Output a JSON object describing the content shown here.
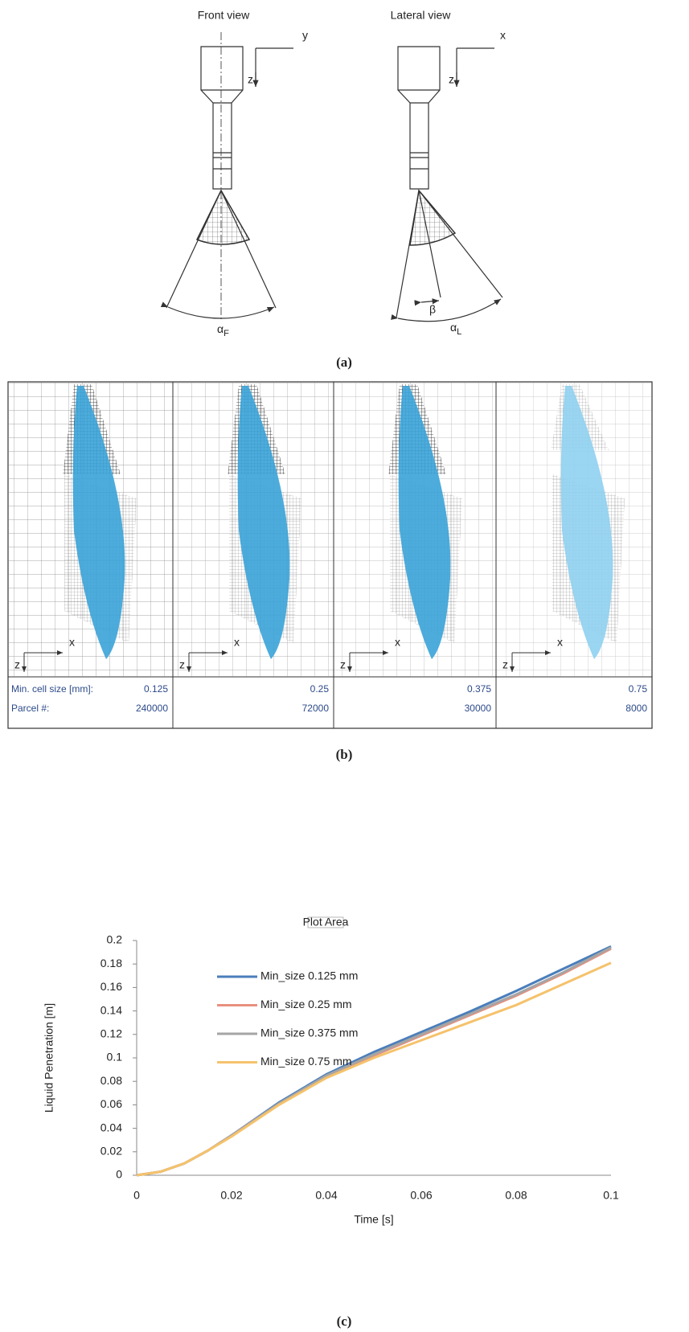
{
  "panel_a": {
    "front_title": "Front view",
    "lateral_title": "Lateral view",
    "front_axes": {
      "h": "y",
      "v": "z"
    },
    "lateral_axes": {
      "h": "x",
      "v": "z"
    },
    "alpha_f": {
      "symbol": "α",
      "subscript": "F"
    },
    "beta": "β",
    "alpha_l": {
      "symbol": "α",
      "subscript": "L"
    },
    "caption": "(a)"
  },
  "panel_b": {
    "axis_labels": {
      "x": "x",
      "z": "z"
    },
    "table": {
      "row_labels": [
        "Min. cell size [mm]:",
        "Parcel #:"
      ],
      "columns": [
        [
          "0.125",
          "240000"
        ],
        [
          "0.25",
          "72000"
        ],
        [
          "0.375",
          "30000"
        ],
        [
          "0.75",
          "8000"
        ]
      ]
    },
    "caption": "(b)"
  },
  "chart_data": {
    "type": "line",
    "x_label": "Time [s]",
    "y_label": "Liquid Penetration [m]",
    "annotation": "Plot Area",
    "x": [
      0,
      0.005,
      0.01,
      0.015,
      0.02,
      0.03,
      0.04,
      0.05,
      0.06,
      0.07,
      0.08,
      0.09,
      0.1
    ],
    "series": [
      {
        "name": "Min_size 0.125 mm",
        "color": "#4a7ebb",
        "values": [
          0,
          0.003,
          0.01,
          0.021,
          0.034,
          0.062,
          0.086,
          0.105,
          0.122,
          0.139,
          0.157,
          0.176,
          0.195
        ]
      },
      {
        "name": "Min_size 0.25 mm",
        "color": "#e8907e",
        "values": [
          0,
          0.003,
          0.01,
          0.021,
          0.034,
          0.061,
          0.084,
          0.102,
          0.119,
          0.136,
          0.153,
          0.172,
          0.193
        ]
      },
      {
        "name": "Min_size 0.375 mm",
        "color": "#a5a5a5",
        "values": [
          0,
          0.003,
          0.01,
          0.021,
          0.034,
          0.061,
          0.085,
          0.103,
          0.12,
          0.137,
          0.154,
          0.173,
          0.194
        ]
      },
      {
        "name": "Min_size 0.75 mm",
        "color": "#f5c26b",
        "values": [
          0,
          0.003,
          0.01,
          0.021,
          0.033,
          0.06,
          0.083,
          0.1,
          0.115,
          0.13,
          0.145,
          0.163,
          0.181
        ]
      }
    ],
    "xlim": [
      0,
      0.1
    ],
    "ylim": [
      0,
      0.2
    ],
    "xticks": [
      0,
      0.02,
      0.04,
      0.06,
      0.08,
      0.1
    ],
    "yticks": [
      0,
      0.02,
      0.04,
      0.06,
      0.08,
      0.1,
      0.12,
      0.14,
      0.16,
      0.18,
      0.2
    ],
    "legend": "upper-left",
    "grid": false
  },
  "caption_c": "(c)"
}
